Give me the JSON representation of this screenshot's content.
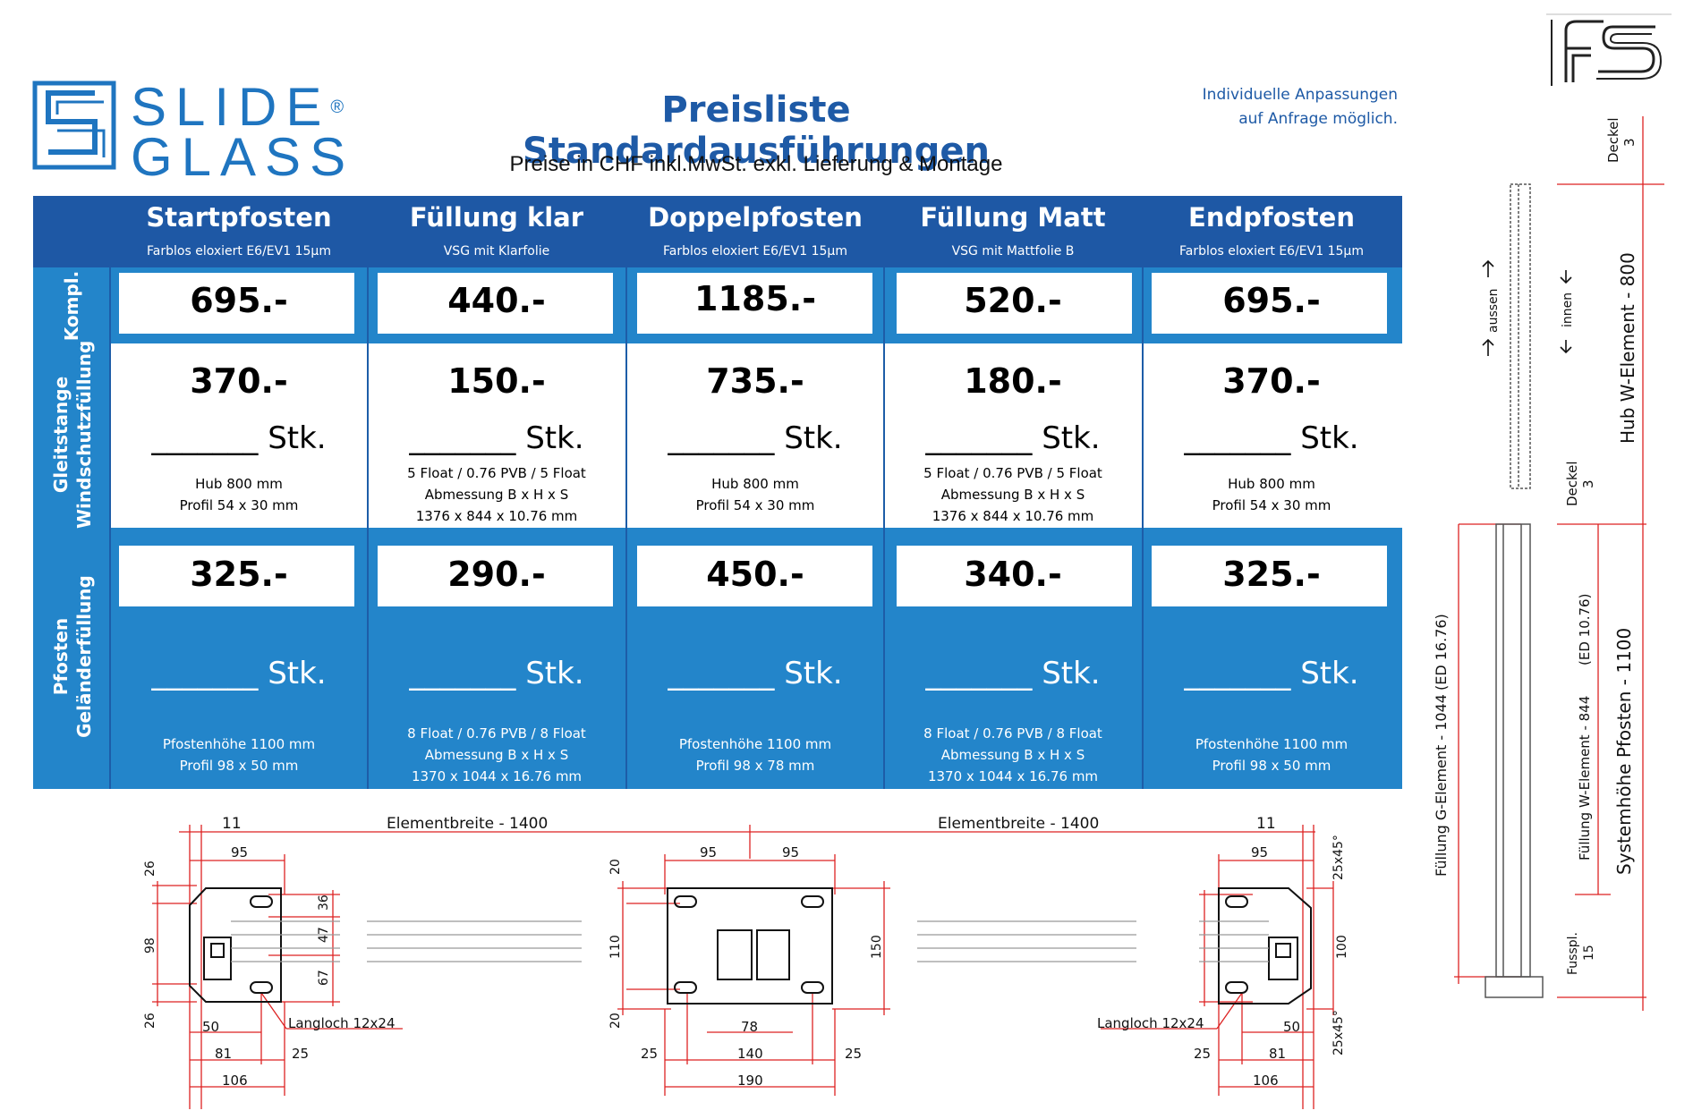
{
  "header": {
    "logo_line1": "SLIDE",
    "logo_line2": "GLASS",
    "logo_reg": "®",
    "title": "Preisliste Standardausführungen",
    "subtitle": "Preise in CHF inkl.MwSt. exkl. Lieferung & Montage",
    "note_line1": "Individuelle Anpassungen",
    "note_line2": "auf Anfrage möglich."
  },
  "columns": [
    {
      "name": "Startpfosten",
      "sub": "Farblos eloxiert E6/EV1 15µm"
    },
    {
      "name": "Füllung klar",
      "sub": "VSG mit Klarfolie"
    },
    {
      "name": "Doppelpfosten",
      "sub": "Farblos eloxiert E6/EV1 15µm"
    },
    {
      "name": "Füllung Matt",
      "sub": "VSG mit Mattfolie B"
    },
    {
      "name": "Endpfosten",
      "sub": "Farblos eloxiert E6/EV1 15µm"
    }
  ],
  "rows": {
    "kompl": {
      "label": "Kompl.",
      "prices": [
        "695.-",
        "440.-",
        "1185.-",
        "520.-",
        "695.-"
      ]
    },
    "gleitstange": {
      "label_line1": "Gleitstange",
      "label_line2": "Windschutzfüllung",
      "prices": [
        "370.-",
        "150.-",
        "735.-",
        "180.-",
        "370.-"
      ],
      "stk": "_______ Stk.",
      "desc": [
        [
          "Hub 800 mm",
          "Profil 54 x 30 mm"
        ],
        [
          "5 Float / 0.76 PVB / 5 Float",
          "Abmessung B x H x S",
          "1376 x 844 x 10.76 mm"
        ],
        [
          "Hub 800 mm",
          "Profil 54 x 30 mm"
        ],
        [
          "5 Float / 0.76 PVB / 5 Float",
          "Abmessung B x H x S",
          "1376 x 844 x 10.76 mm"
        ],
        [
          "Hub 800 mm",
          "Profil 54 x 30 mm"
        ]
      ]
    },
    "pfosten": {
      "label_line1": "Pfosten",
      "label_line2": "Geländerfüllung",
      "prices": [
        "325.-",
        "290.-",
        "450.-",
        "340.-",
        "325.-"
      ],
      "stk": "_______ Stk.",
      "desc": [
        [
          "Pfostenhöhe 1100 mm",
          "Profil 98 x 50 mm"
        ],
        [
          "8 Float / 0.76 PVB / 8 Float",
          "Abmessung B x H x S",
          "1370 x 1044 x 16.76 mm"
        ],
        [
          "Pfostenhöhe 1100 mm",
          "Profil 98 x 78 mm"
        ],
        [
          "8 Float / 0.76 PVB / 8 Float",
          "Abmessung B x H x S",
          "1370 x 1044 x 16.76 mm"
        ],
        [
          "Pfostenhöhe 1100 mm",
          "Profil 98 x 50 mm"
        ]
      ]
    }
  },
  "plan": {
    "elementbreite_left": "Elementbreite - 1400",
    "elementbreite_right": "Elementbreite - 1400",
    "d11": "11",
    "d95": "95",
    "d26": "26",
    "d98": "98",
    "d36": "36",
    "d47": "47",
    "d67": "67",
    "d50": "50",
    "d81": "81",
    "d25": "25",
    "d106": "106",
    "langloch": "Langloch 12x24",
    "d20": "20",
    "d110": "110",
    "d150": "150",
    "d78": "78",
    "d140": "140",
    "d190": "190",
    "d100": "100",
    "chamfer": "25x45°"
  },
  "side": {
    "deckel": "Deckel",
    "deckel_val": "3",
    "aussen": "aussen",
    "innen": "innen",
    "hub": "Hub W-Element - 800",
    "fuellung_g": "Füllung G-Element - 1044",
    "ed_g": "(ED 16.76)",
    "fuellung_w": "Füllung W-Element - 844",
    "ed_w": "(ED 10.76)",
    "system": "Systemhöhe Pfosten - 1100",
    "fusspl": "Fusspl.",
    "fusspl_val": "15"
  },
  "colors": {
    "brand": "#1e58a5",
    "band": "#2385ca",
    "dim": "#d22"
  }
}
